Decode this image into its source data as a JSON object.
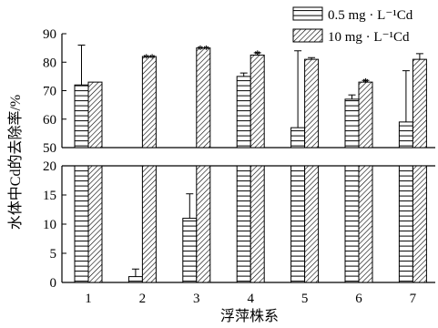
{
  "chart_data": {
    "type": "bar",
    "xlabel": "浮萍株系",
    "ylabel": "水体中Cd的去除率/%",
    "categories": [
      "1",
      "2",
      "3",
      "4",
      "5",
      "6",
      "7"
    ],
    "y_axis_break": {
      "lower_range": [
        0,
        20
      ],
      "upper_range": [
        50,
        90
      ]
    },
    "y_ticks_upper": [
      "50",
      "60",
      "70",
      "80",
      "90"
    ],
    "y_ticks_lower": [
      "0",
      "5",
      "10",
      "15",
      "20"
    ],
    "legend_position": "top-right",
    "series": [
      {
        "name": "0.5 mg · L⁻¹Cd",
        "pattern": "horizontal-lines",
        "values": [
          72,
          1,
          11,
          75,
          57,
          67,
          59
        ],
        "errors": [
          14,
          1.3,
          4.2,
          1.2,
          27,
          1.5,
          18
        ]
      },
      {
        "name": "10 mg · L⁻¹Cd",
        "pattern": "diagonal-hatch",
        "values": [
          73,
          82,
          85,
          82.5,
          81,
          73,
          81
        ],
        "errors": [
          0,
          0,
          0,
          0.8,
          0.6,
          0.6,
          2
        ],
        "significance": [
          "",
          "**",
          "**",
          "*",
          "",
          "*",
          ""
        ]
      }
    ],
    "colors": {
      "stroke": "#000000",
      "background": "#ffffff"
    }
  }
}
